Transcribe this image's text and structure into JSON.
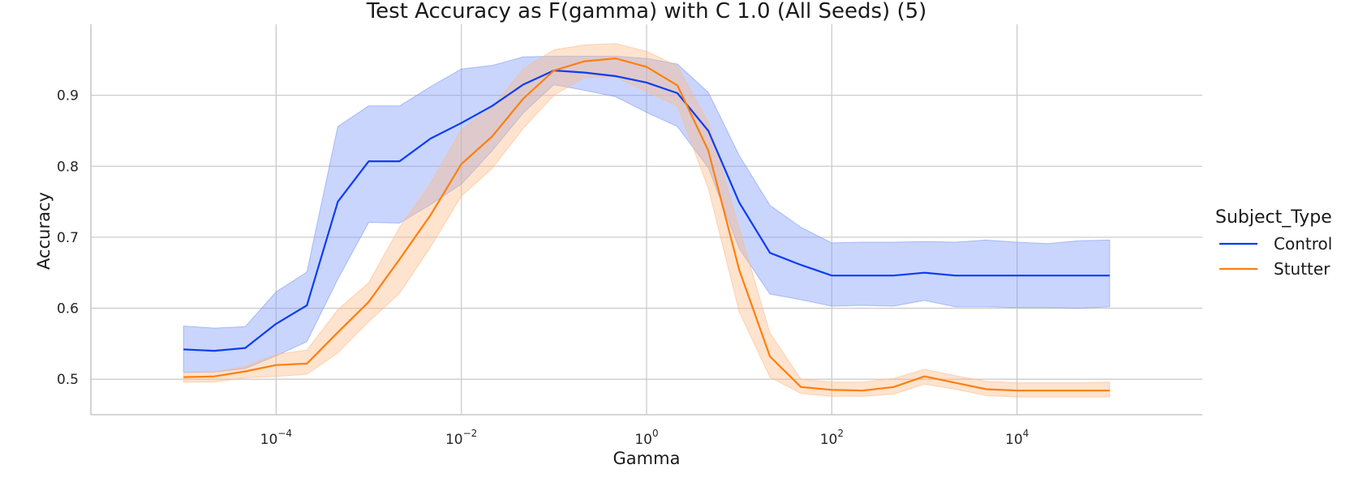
{
  "chart_data": {
    "type": "line",
    "title": "Test Accuracy as F(gamma) with C 1.0 (All Seeds) (5)",
    "xlabel": "Gamma",
    "ylabel": "Accuracy",
    "xscale": "log",
    "xlim": [
      1e-06,
      1000000.0
    ],
    "ylim": [
      0.45,
      1.0
    ],
    "x_ticks": [
      {
        "value": 0.0001,
        "base": "10",
        "exp": "−4"
      },
      {
        "value": 0.01,
        "base": "10",
        "exp": "−2"
      },
      {
        "value": 1,
        "base": "10",
        "exp": "0"
      },
      {
        "value": 100,
        "base": "10",
        "exp": "2"
      },
      {
        "value": 10000,
        "base": "10",
        "exp": "4"
      }
    ],
    "y_ticks": [
      {
        "value": 0.5,
        "label": "0.5"
      },
      {
        "value": 0.6,
        "label": "0.6"
      },
      {
        "value": 0.7,
        "label": "0.7"
      },
      {
        "value": 0.8,
        "label": "0.8"
      },
      {
        "value": 0.9,
        "label": "0.9"
      }
    ],
    "grid": true,
    "legend": {
      "title": "Subject_Type",
      "placement": "right"
    },
    "x": [
      1e-05,
      2.15e-05,
      4.64e-05,
      0.0001,
      0.000215,
      0.000464,
      0.001,
      0.00215,
      0.00464,
      0.01,
      0.0215,
      0.0464,
      0.1,
      0.215,
      0.464,
      1,
      2.15,
      4.64,
      10,
      21.5,
      46.4,
      100,
      215,
      464,
      1000,
      2150,
      4640,
      10000,
      21500,
      46400,
      100000
    ],
    "series": [
      {
        "name": "Control",
        "color": "#0b3cf5",
        "band_color": "#7f9bf7",
        "values": [
          0.542,
          0.54,
          0.544,
          0.578,
          0.604,
          0.75,
          0.807,
          0.807,
          0.839,
          0.861,
          0.885,
          0.915,
          0.935,
          0.932,
          0.927,
          0.918,
          0.903,
          0.85,
          0.749,
          0.678,
          0.661,
          0.646,
          0.646,
          0.646,
          0.65,
          0.646,
          0.646,
          0.646,
          0.646,
          0.646,
          0.646
        ],
        "lower": [
          0.51,
          0.51,
          0.515,
          0.533,
          0.553,
          0.641,
          0.721,
          0.72,
          0.746,
          0.775,
          0.822,
          0.875,
          0.915,
          0.907,
          0.898,
          0.876,
          0.856,
          0.798,
          0.684,
          0.62,
          0.612,
          0.603,
          0.604,
          0.603,
          0.611,
          0.602,
          0.602,
          0.601,
          0.601,
          0.6,
          0.602
        ],
        "upper": [
          0.575,
          0.572,
          0.574,
          0.623,
          0.651,
          0.856,
          0.885,
          0.885,
          0.912,
          0.937,
          0.942,
          0.954,
          0.955,
          0.955,
          0.955,
          0.952,
          0.944,
          0.904,
          0.815,
          0.745,
          0.714,
          0.692,
          0.693,
          0.693,
          0.694,
          0.693,
          0.696,
          0.693,
          0.691,
          0.695,
          0.696
        ]
      },
      {
        "name": "Stutter",
        "color": "#ff7f0e",
        "band_color": "#fdbd8a",
        "values": [
          0.503,
          0.504,
          0.511,
          0.52,
          0.522,
          0.566,
          0.609,
          0.669,
          0.731,
          0.803,
          0.842,
          0.895,
          0.935,
          0.948,
          0.952,
          0.94,
          0.914,
          0.822,
          0.654,
          0.532,
          0.489,
          0.485,
          0.484,
          0.489,
          0.504,
          0.495,
          0.486,
          0.484,
          0.484,
          0.484,
          0.484
        ],
        "lower": [
          0.496,
          0.496,
          0.502,
          0.504,
          0.507,
          0.537,
          0.581,
          0.621,
          0.686,
          0.758,
          0.797,
          0.853,
          0.9,
          0.925,
          0.926,
          0.905,
          0.885,
          0.769,
          0.595,
          0.503,
          0.48,
          0.476,
          0.476,
          0.479,
          0.493,
          0.486,
          0.477,
          0.475,
          0.475,
          0.475,
          0.475
        ],
        "upper": [
          0.509,
          0.51,
          0.518,
          0.535,
          0.541,
          0.598,
          0.636,
          0.714,
          0.776,
          0.852,
          0.883,
          0.937,
          0.964,
          0.971,
          0.973,
          0.962,
          0.941,
          0.862,
          0.713,
          0.565,
          0.5,
          0.496,
          0.496,
          0.501,
          0.514,
          0.505,
          0.497,
          0.495,
          0.495,
          0.495,
          0.496
        ]
      }
    ]
  }
}
